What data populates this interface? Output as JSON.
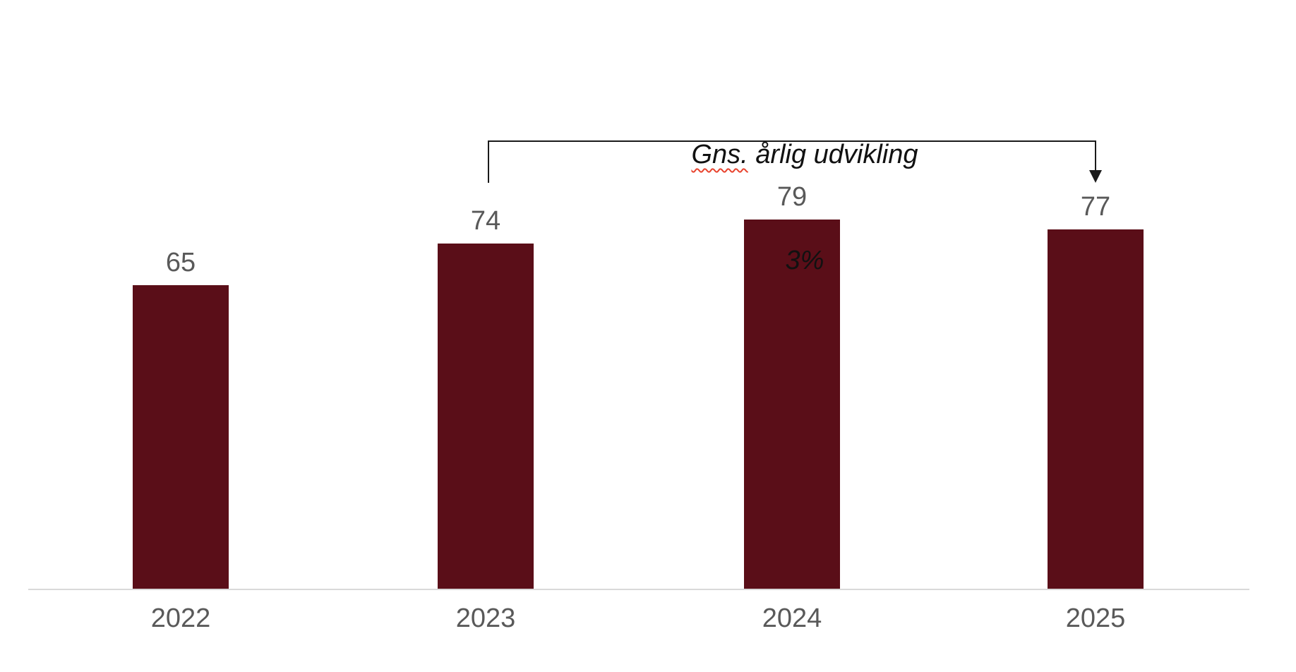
{
  "page": {
    "background_color": "#ffffff"
  },
  "chart_data": {
    "type": "bar",
    "title": "",
    "xlabel": "",
    "ylabel": "",
    "categories": [
      "2022",
      "2023",
      "2024",
      "2025"
    ],
    "values": [
      65,
      74,
      79,
      77
    ],
    "value_labels_position": "above bars",
    "grid": false,
    "legend": false,
    "y_axis_visible": false,
    "bar_color": "#5A0E18",
    "label_color": "#595959",
    "axis_line_color": "#D9D9D9",
    "annotation": {
      "line1": "Gns. årlig udvikling",
      "spellcheck_word": "Gns.",
      "line1_rest": " årlig udvikling",
      "line2": "3%",
      "from_category": "2023",
      "to_category": "2025",
      "text_color": "#111111",
      "arrow_color": "#1a1a1a",
      "spellcheck_underline_color": "#E8432E"
    }
  }
}
